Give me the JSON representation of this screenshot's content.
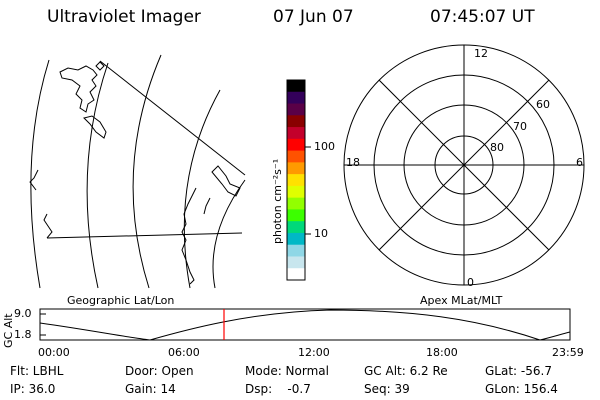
{
  "header": {
    "instrument": "Ultraviolet Imager",
    "date": "07 Jun 07",
    "time": "07:45:07 UT"
  },
  "colorbar": {
    "unit_label": "photon cm⁻²s⁻¹",
    "ticks": [
      "100",
      "10"
    ],
    "colors": [
      "#000000",
      "#33005a",
      "#5a0047",
      "#8a0000",
      "#c3002b",
      "#ff0000",
      "#ff5200",
      "#ff9a00",
      "#ffe100",
      "#dfff00",
      "#92ff00",
      "#3cff00",
      "#00d97a",
      "#00b8c6",
      "#8fd7e6",
      "#c8e6ee",
      "#ffffff"
    ]
  },
  "polar": {
    "labels": {
      "top": "12",
      "bottom": "0",
      "left": "18",
      "right": "6"
    },
    "lat_labels": [
      "60",
      "70",
      "80"
    ]
  },
  "panel_labels": {
    "geo": "Geographic Lat/Lon",
    "apex": "Apex MLat/MLT"
  },
  "alt_plot": {
    "ylabel": "GC Alt",
    "yticks": [
      "9.0",
      "1.8"
    ],
    "xticks": [
      "00:00",
      "06:00",
      "12:00",
      "18:00",
      "23:59"
    ],
    "marker_color": "#ff0000"
  },
  "info": {
    "filter": "Flt: LBHL",
    "ip": "IP: 36.0",
    "door": "Door: Open",
    "gain": "Gain: 14",
    "mode": "Mode: Normal",
    "dsp": "Dsp:    -0.7",
    "gc_alt": "GC Alt: 6.2 Re",
    "seq": "Seq: 39",
    "glat": "GLat: -56.7",
    "glon": "GLon: 156.4"
  }
}
